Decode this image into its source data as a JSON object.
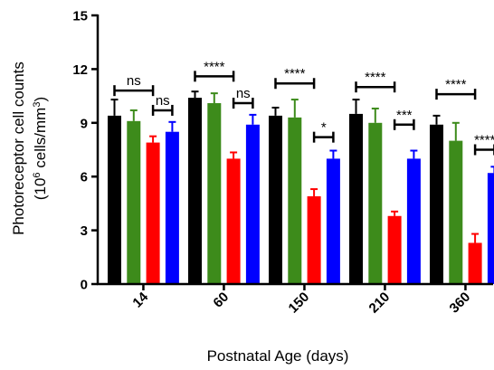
{
  "chart_data": {
    "type": "bar",
    "title": "",
    "xlabel": "Postnatal Age (days)",
    "ylabel_line1": "Photoreceptor cell counts",
    "ylabel_line2_pre": "(10",
    "ylabel_line2_sup": "6",
    "ylabel_line2_mid": " cells/mm",
    "ylabel_line2_sup2": "3",
    "ylabel_line2_post": ")",
    "ylim": [
      0,
      15
    ],
    "yticks": [
      "0",
      "3",
      "6",
      "9",
      "12",
      "15"
    ],
    "categories": [
      "14",
      "60",
      "150",
      "210",
      "360"
    ],
    "colors": [
      "#000000",
      "#3d8b1b",
      "#ff0000",
      "#0000ff"
    ],
    "series": [
      {
        "values": [
          9.4,
          10.4,
          9.4,
          9.5,
          8.9
        ],
        "errors": [
          0.9,
          0.35,
          0.45,
          0.8,
          0.5
        ]
      },
      {
        "values": [
          9.1,
          10.1,
          9.3,
          9.0,
          8.0
        ],
        "errors": [
          0.6,
          0.55,
          1.0,
          0.8,
          1.0
        ]
      },
      {
        "values": [
          7.9,
          7.0,
          4.9,
          3.8,
          2.3
        ],
        "errors": [
          0.35,
          0.35,
          0.4,
          0.25,
          0.5
        ]
      },
      {
        "values": [
          8.5,
          8.9,
          7.0,
          7.0,
          6.2
        ],
        "errors": [
          0.55,
          0.55,
          0.45,
          0.45,
          0.35
        ]
      }
    ],
    "significance": [
      {
        "group": 0,
        "from": 0,
        "to": 2,
        "y": 10.8,
        "label": "ns"
      },
      {
        "group": 0,
        "from": 2,
        "to": 3,
        "y": 9.7,
        "label": "ns"
      },
      {
        "group": 1,
        "from": 0,
        "to": 2,
        "y": 11.6,
        "label": "****"
      },
      {
        "group": 1,
        "from": 2,
        "to": 3,
        "y": 10.1,
        "label": "ns"
      },
      {
        "group": 2,
        "from": 0,
        "to": 2,
        "y": 11.2,
        "label": "****"
      },
      {
        "group": 2,
        "from": 2,
        "to": 3,
        "y": 8.2,
        "label": "*"
      },
      {
        "group": 3,
        "from": 0,
        "to": 2,
        "y": 11.0,
        "label": "****"
      },
      {
        "group": 3,
        "from": 2,
        "to": 3,
        "y": 8.9,
        "label": "***"
      },
      {
        "group": 4,
        "from": 0,
        "to": 2,
        "y": 10.6,
        "label": "****"
      },
      {
        "group": 4,
        "from": 2,
        "to": 3,
        "y": 7.5,
        "label": "****"
      }
    ]
  }
}
